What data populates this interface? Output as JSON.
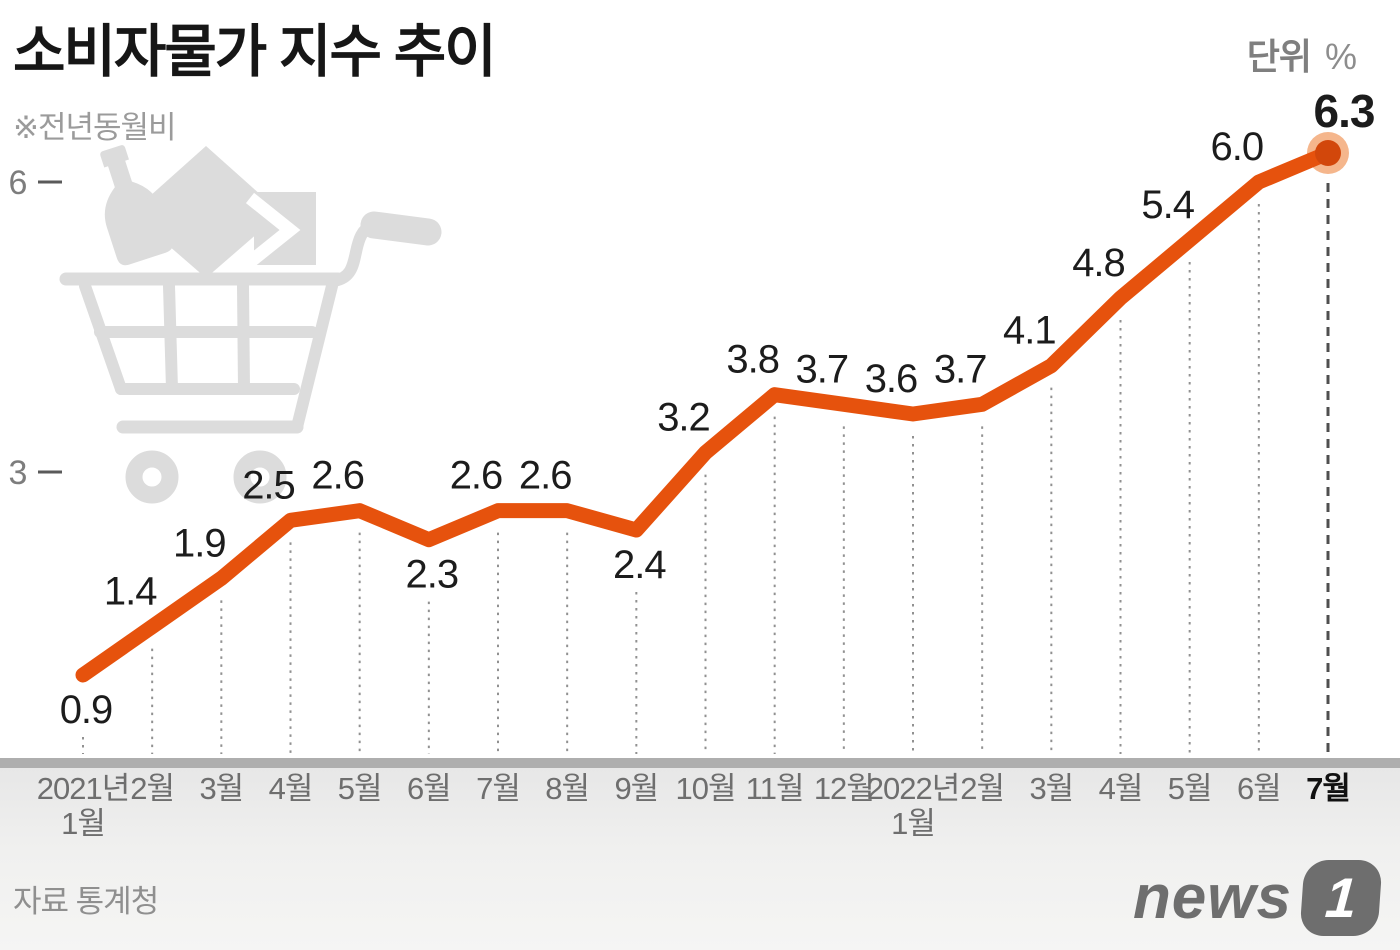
{
  "chart_data": {
    "type": "line",
    "title": "소비자물가 지수 추이",
    "note": "※전년동월비",
    "unit_prefix": "단위",
    "unit": "%",
    "source": "자료 통계청",
    "categories": [
      "2021년\n1월",
      "2월",
      "3월",
      "4월",
      "5월",
      "6월",
      "7월",
      "8월",
      "9월",
      "10월",
      "11월",
      "12월",
      "2022년\n1월",
      "2월",
      "3월",
      "4월",
      "5월",
      "6월",
      "7월"
    ],
    "values": [
      0.9,
      1.4,
      1.9,
      2.5,
      2.6,
      2.3,
      2.6,
      2.6,
      2.4,
      3.2,
      3.8,
      3.7,
      3.6,
      3.7,
      4.1,
      4.8,
      5.4,
      6.0,
      6.3
    ],
    "label_side": [
      "below",
      "above",
      "above",
      "above",
      "above",
      "below",
      "above",
      "above",
      "below",
      "above",
      "above",
      "above",
      "above",
      "above",
      "above",
      "above",
      "above",
      "above",
      "above"
    ],
    "yticks": [
      3,
      6
    ],
    "ylim": [
      0.5,
      6.6
    ],
    "grid": "dotted-vertical-per-point",
    "legend": "none",
    "line_color": "#E6520D",
    "end_point_color": "#D2470B",
    "end_halo_color": "#F5B68C",
    "label_color": "#1c1c1c",
    "grid_color": "#919191",
    "final_grid_color": "#4f4f4f",
    "axis_text_color": "#7d7d7d",
    "watermark": "shopping-cart"
  },
  "logo": {
    "news": "news",
    "one": "1"
  }
}
